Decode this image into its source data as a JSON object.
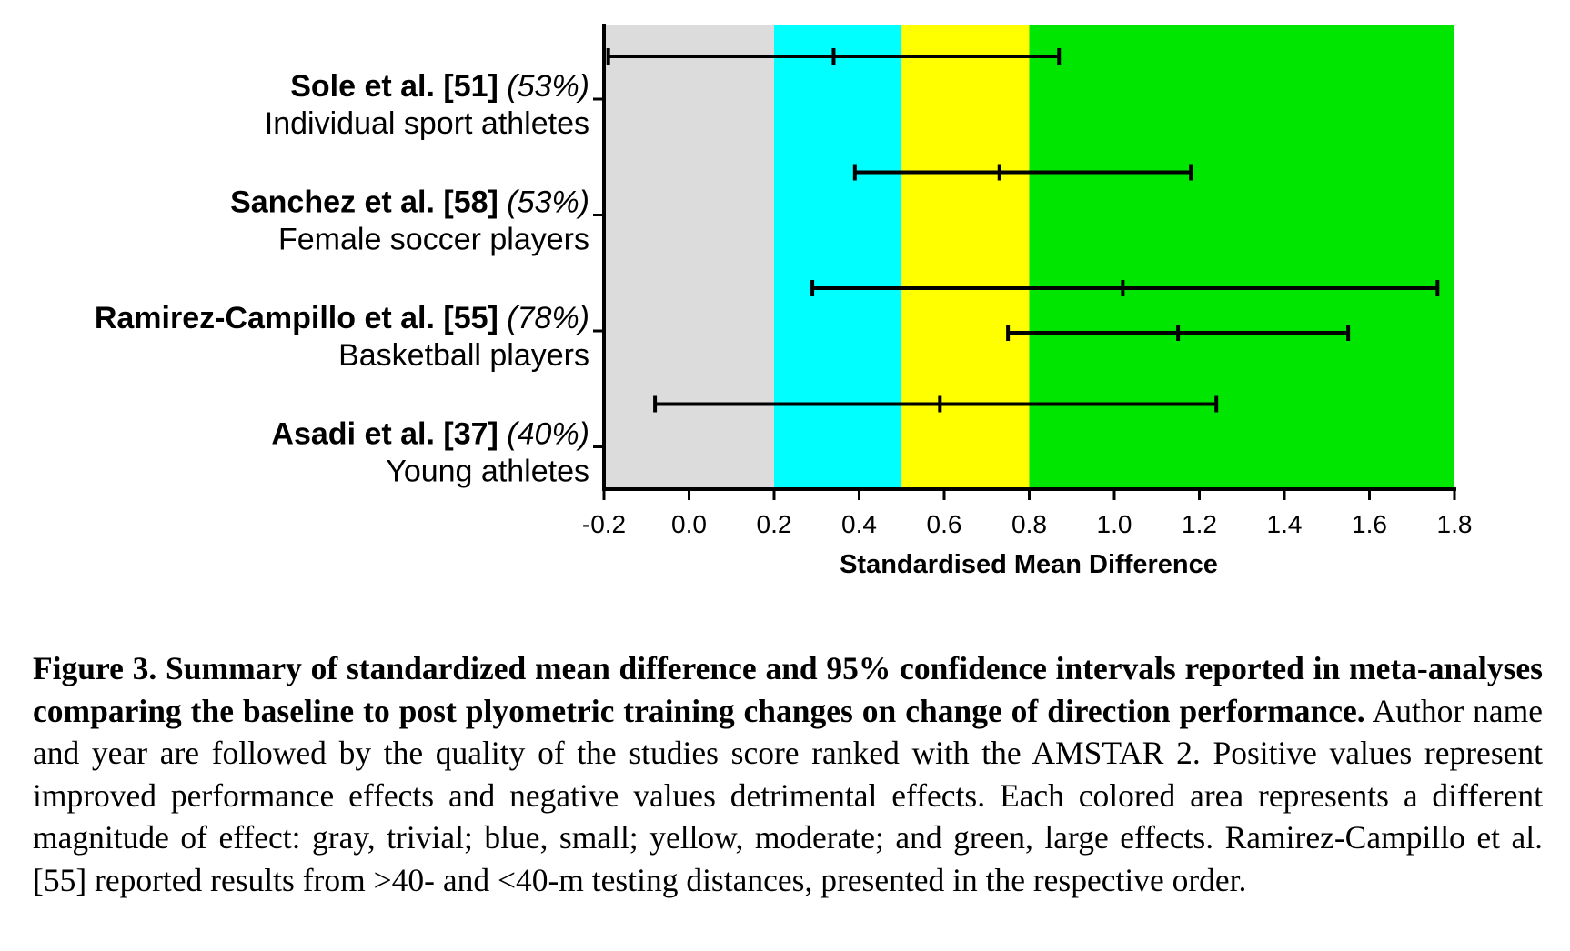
{
  "chart_data": {
    "type": "forest",
    "xlabel": "Standardised Mean Difference",
    "xlim": [
      -0.2,
      1.8
    ],
    "xticks": [
      "-0.2",
      "0.0",
      "0.2",
      "0.4",
      "0.6",
      "0.8",
      "1.0",
      "1.2",
      "1.4",
      "1.6",
      "1.8"
    ],
    "bands": [
      {
        "name": "trivial",
        "from": -0.2,
        "to": 0.2,
        "color": "#dcdcdc"
      },
      {
        "name": "small",
        "from": 0.2,
        "to": 0.5,
        "color": "#00ffff"
      },
      {
        "name": "moderate",
        "from": 0.5,
        "to": 0.8,
        "color": "#ffff00"
      },
      {
        "name": "large",
        "from": 0.8,
        "to": 1.8,
        "color": "#00e600"
      }
    ],
    "studies": [
      {
        "title": "Sole et al. [51]",
        "quality": "(53%)",
        "description": "Individual sport athletes",
        "estimates": [
          {
            "mean": 0.34,
            "lower": -0.19,
            "upper": 0.87
          }
        ]
      },
      {
        "title": "Sanchez et al. [58]",
        "quality": "(53%)",
        "description": "Female soccer players",
        "estimates": [
          {
            "mean": 0.73,
            "lower": 0.39,
            "upper": 1.18
          }
        ]
      },
      {
        "title": "Ramirez-Campillo et al. [55]",
        "quality": "(78%)",
        "description": "Basketball players",
        "estimates": [
          {
            "mean": 1.02,
            "lower": 0.29,
            "upper": 1.76
          },
          {
            "mean": 1.15,
            "lower": 0.75,
            "upper": 1.55
          }
        ]
      },
      {
        "title": "Asadi et al. [37]",
        "quality": "(40%)",
        "description": "Young athletes",
        "estimates": [
          {
            "mean": 0.59,
            "lower": -0.08,
            "upper": 1.24
          }
        ]
      }
    ]
  },
  "caption": {
    "lead": "Figure 3. Summary of standardized mean difference and 95% confidence intervals reported in meta-analyses comparing the baseline to post plyometric training changes on change of direction performance.",
    "body": " Author name and year are followed by the quality of the studies score ranked with the AMSTAR 2. Positive values represent improved performance effects and negative values detrimental effects. Each colored area represents a different magnitude of effect: gray, trivial; blue, small; yellow, moderate; and green, large effects. Ramirez-Campillo et al. [55] reported results from >40- and <40-m testing distances, presented in the respective order."
  }
}
